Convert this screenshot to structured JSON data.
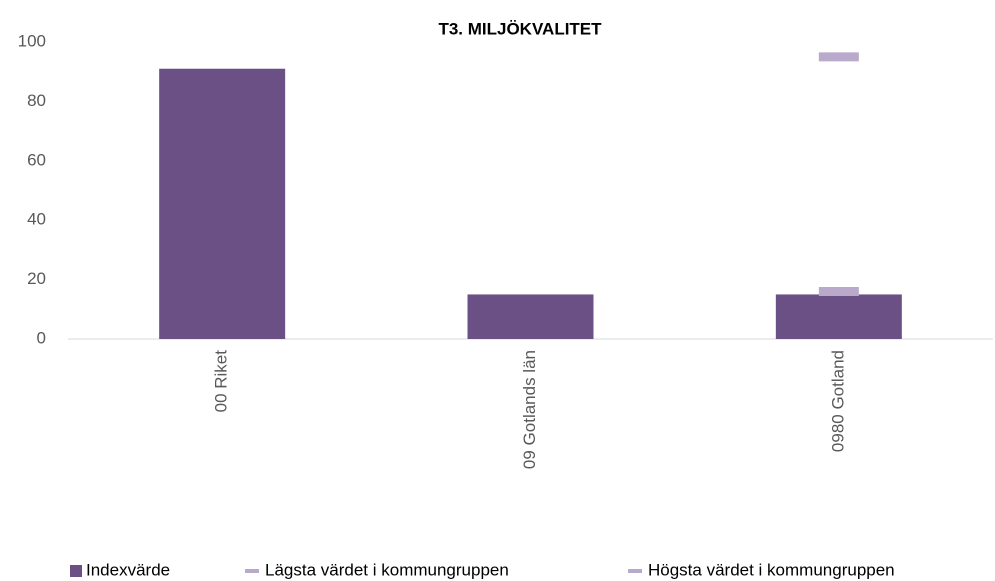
{
  "chart_data": {
    "type": "bar",
    "title": "T3. MILJÖKVALITET",
    "categories": [
      "00 Riket",
      "09 Gotlands län",
      "0980 Gotland"
    ],
    "series": [
      {
        "name": "Indexvärde",
        "type": "bar",
        "color": "#6a5084",
        "values": [
          91,
          15,
          15
        ]
      },
      {
        "name": "Lägsta värdet i kommungruppen",
        "type": "dash",
        "color": "#b9a9cb",
        "values": [
          null,
          null,
          16
        ]
      },
      {
        "name": "Högsta värdet i kommungruppen",
        "type": "dash",
        "color": "#b9a9cb",
        "values": [
          null,
          null,
          95
        ]
      }
    ],
    "ylim": [
      0,
      100
    ],
    "yticks": [
      0,
      20,
      40,
      60,
      80,
      100
    ],
    "grid": false,
    "legend": "bottom"
  }
}
